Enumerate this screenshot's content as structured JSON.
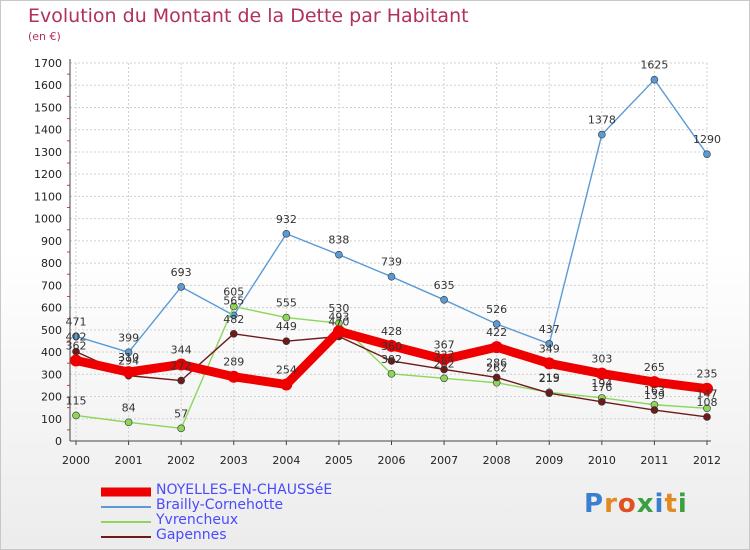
{
  "header": {
    "title": "Evolution du Montant de la Dette par Habitant",
    "unit": "(en €)"
  },
  "logo": {
    "text": "Proxiti",
    "colors": [
      "#3a7fd0",
      "#e08a20",
      "#e05020",
      "#3aa040",
      "#3a7fd0",
      "#e08a20",
      "#3aa040"
    ]
  },
  "chart_data": {
    "type": "line",
    "title": "Evolution du Montant de la Dette par Habitant",
    "ylabel": "(en €)",
    "xlabel": "",
    "ylim": [
      0,
      1700
    ],
    "yticks": [
      0,
      100,
      200,
      300,
      400,
      500,
      600,
      700,
      800,
      900,
      1000,
      1100,
      1200,
      1300,
      1400,
      1500,
      1600,
      1700
    ],
    "x": [
      "2000",
      "2001",
      "2002",
      "2003",
      "2004",
      "2005",
      "2006",
      "2007",
      "2008",
      "2009",
      "2010",
      "2011",
      "2012"
    ],
    "grid": true,
    "legend_position": "bottom-left",
    "series": [
      {
        "name": "NOYELLES-EN-CHAUSSéE",
        "color": "#ee0000",
        "values": [
          362,
          310,
          344,
          289,
          254,
          493,
          428,
          367,
          422,
          349,
          303,
          265,
          235
        ]
      },
      {
        "name": "Brailly-Cornehotte",
        "color": "#5b9bd5",
        "values": [
          471,
          399,
          693,
          565,
          932,
          838,
          739,
          635,
          526,
          437,
          1378,
          1625,
          1290
        ]
      },
      {
        "name": "Yvrencheux",
        "color": "#8dd65a",
        "values": [
          115,
          84,
          57,
          605,
          555,
          530,
          302,
          282,
          262,
          219,
          194,
          163,
          147
        ]
      },
      {
        "name": "Gapennes",
        "color": "#6e1a1a",
        "values": [
          402,
          294,
          272,
          482,
          449,
          470,
          360,
          322,
          286,
          215,
          176,
          139,
          108
        ]
      }
    ]
  }
}
